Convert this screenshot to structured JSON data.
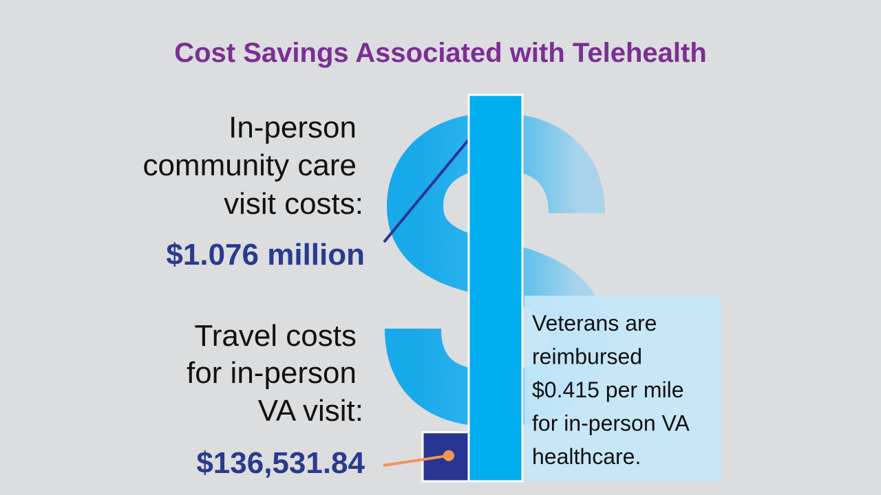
{
  "chart_data": {
    "type": "bar",
    "title": "Cost Savings Associated with Telehealth",
    "categories": [
      [
        "In-person",
        "community care",
        "visit costs:"
      ],
      [
        "Travel costs",
        "for in-person",
        "VA visit:"
      ]
    ],
    "values": [
      1076000,
      136531.84
    ],
    "value_labels": [
      "$1.076 million",
      "$136,531.84"
    ],
    "colors": [
      "#00aeef",
      "#283593"
    ],
    "connector_colors": [
      "#283593",
      "#f4935a"
    ],
    "note": [
      "Veterans are",
      "reimbursed",
      "$0.415 per mile",
      "for in-person VA",
      "healthcare."
    ]
  }
}
